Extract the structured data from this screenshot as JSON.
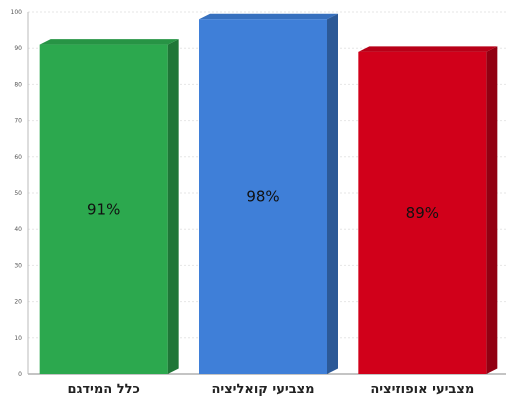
{
  "chart_data": {
    "type": "bar",
    "title": "",
    "xlabel": "",
    "ylabel": "",
    "ylim": [
      0,
      100
    ],
    "yticks": [
      0,
      10,
      20,
      30,
      40,
      50,
      60,
      70,
      80,
      90,
      100
    ],
    "grid": true,
    "style": "3d",
    "categories": [
      "כלל המידגם",
      "מצביעי קואליציה",
      "מצביעי אופוזיציה"
    ],
    "values": [
      91,
      98,
      89
    ],
    "data_labels": [
      "91%",
      "98%",
      "89%"
    ],
    "colors": [
      "#2ca84e",
      "#3f7fd8",
      "#d1001a"
    ]
  }
}
